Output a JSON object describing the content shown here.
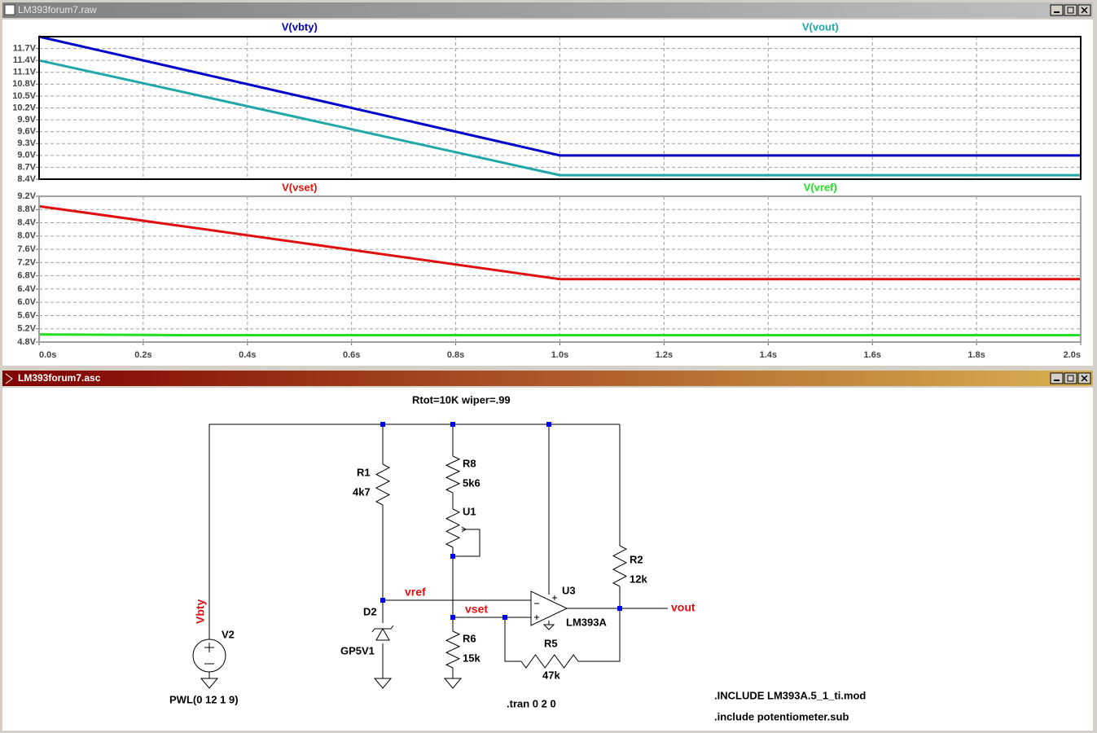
{
  "plot_window": {
    "title": "LM393forum7.raw"
  },
  "chart_data": [
    {
      "type": "line",
      "x": [
        0,
        0.27,
        1.0,
        2.0
      ],
      "xlim": [
        0,
        2
      ],
      "xticks": [
        0,
        0.2,
        0.4,
        0.6,
        0.8,
        1.0,
        1.2,
        1.4,
        1.6,
        1.8,
        2.0
      ],
      "ylim": [
        8.4,
        12.0
      ],
      "yticks": [
        {
          "value": 8.4,
          "label": "8.4V"
        },
        {
          "value": 8.7,
          "label": "8.7V"
        },
        {
          "value": 9.0,
          "label": "9.0V"
        },
        {
          "value": 9.3,
          "label": "9.3V"
        },
        {
          "value": 9.6,
          "label": "9.6V"
        },
        {
          "value": 9.9,
          "label": "9.9V"
        },
        {
          "value": 10.2,
          "label": "10.2V"
        },
        {
          "value": 10.5,
          "label": "10.5V"
        },
        {
          "value": 10.8,
          "label": "10.8V"
        },
        {
          "value": 11.1,
          "label": "11.1V"
        },
        {
          "value": 11.4,
          "label": "11.4V"
        },
        {
          "value": 11.7,
          "label": "11.7V"
        }
      ],
      "grid": true,
      "frame_color": "#000000",
      "series": [
        {
          "name": "V(vbty)",
          "color": "#0000c8",
          "values": [
            12.0,
            11.19,
            9.0,
            9.0
          ]
        },
        {
          "name": "V(vout)",
          "color": "#20a8a8",
          "values": [
            11.4,
            10.62,
            8.5,
            8.5
          ]
        }
      ]
    },
    {
      "type": "line",
      "x": [
        0,
        0.27,
        1.0,
        2.0
      ],
      "xlim": [
        0,
        2
      ],
      "xticks": [
        {
          "value": 0,
          "label": "0.0s"
        },
        {
          "value": 0.2,
          "label": "0.2s"
        },
        {
          "value": 0.4,
          "label": "0.4s"
        },
        {
          "value": 0.6,
          "label": "0.6s"
        },
        {
          "value": 0.8,
          "label": "0.8s"
        },
        {
          "value": 1.0,
          "label": "1.0s"
        },
        {
          "value": 1.2,
          "label": "1.2s"
        },
        {
          "value": 1.4,
          "label": "1.4s"
        },
        {
          "value": 1.6,
          "label": "1.6s"
        },
        {
          "value": 1.8,
          "label": "1.8s"
        },
        {
          "value": 2.0,
          "label": "2.0s"
        }
      ],
      "ylim": [
        4.8,
        9.2
      ],
      "yticks": [
        {
          "value": 4.8,
          "label": "4.8V"
        },
        {
          "value": 5.2,
          "label": "5.2V"
        },
        {
          "value": 5.6,
          "label": "5.6V"
        },
        {
          "value": 6.0,
          "label": "6.0V"
        },
        {
          "value": 6.4,
          "label": "6.4V"
        },
        {
          "value": 6.8,
          "label": "6.8V"
        },
        {
          "value": 7.2,
          "label": "7.2V"
        },
        {
          "value": 7.6,
          "label": "7.6V"
        },
        {
          "value": 8.0,
          "label": "8.0V"
        },
        {
          "value": 8.4,
          "label": "8.4V"
        },
        {
          "value": 8.8,
          "label": "8.8V"
        },
        {
          "value": 9.2,
          "label": "9.2V"
        }
      ],
      "grid": true,
      "frame_color": "#a0a0a0",
      "series": [
        {
          "name": "V(vset)",
          "color": "#e01010",
          "values": [
            8.9,
            8.31,
            6.7,
            6.7
          ]
        },
        {
          "name": "V(vref)",
          "color": "#20e020",
          "values": [
            5.03,
            5.01,
            5.01,
            5.01
          ]
        }
      ]
    }
  ],
  "schematic_window": {
    "title": "LM393forum7.asc",
    "parameter": "Rtot=10K wiper=.99",
    "components": [
      {
        "name": "R1",
        "value": "4k7"
      },
      {
        "name": "R8",
        "value": "5k6"
      },
      {
        "name": "U1"
      },
      {
        "name": "R2",
        "value": "12k"
      },
      {
        "name": "U3",
        "value": "LM393A"
      },
      {
        "name": "D2",
        "value": "GP5V1"
      },
      {
        "name": "R6",
        "value": "15k"
      },
      {
        "name": "R5",
        "value": "47k"
      },
      {
        "name": "V2",
        "value": "PWL(0 12 1 9)"
      }
    ],
    "nets": [
      "vref",
      "vset",
      "vout",
      "Vbty"
    ],
    "directives": [
      ".tran 0 2 0",
      ".INCLUDE LM393A.5_1_ti.mod",
      ".include potentiometer.sub"
    ]
  }
}
